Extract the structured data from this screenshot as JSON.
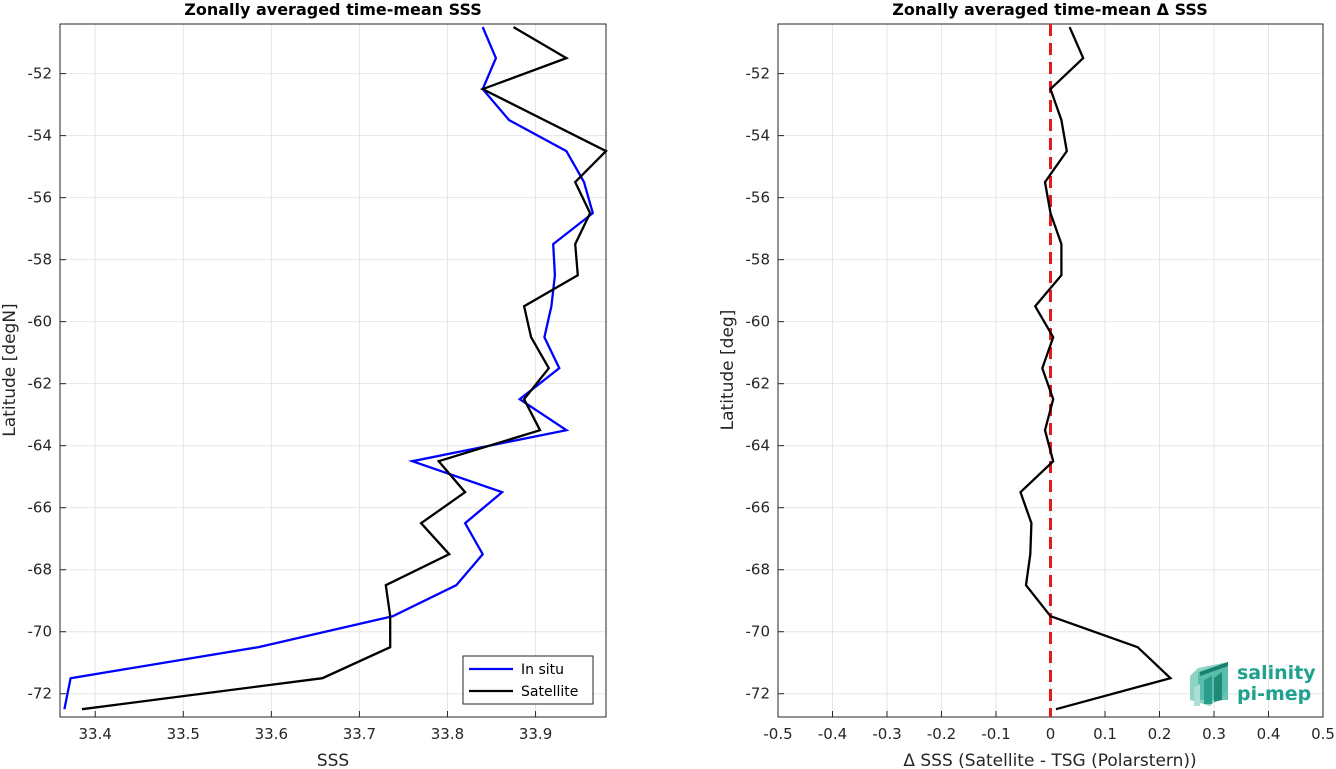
{
  "chart_data": [
    {
      "type": "line",
      "title": "Zonally averaged time-mean SSS",
      "xlabel": "SSS",
      "ylabel": "Latitude [degN]",
      "xlim": [
        33.36,
        33.98
      ],
      "ylim": [
        -72.75,
        -50.4
      ],
      "xticks": [
        33.4,
        33.5,
        33.6,
        33.7,
        33.8,
        33.9
      ],
      "yticks": [
        -72,
        -70,
        -68,
        -66,
        -64,
        -62,
        -60,
        -58,
        -56,
        -54,
        -52
      ],
      "grid": true,
      "legend_position": "bottom-right",
      "series": [
        {
          "name": "In situ",
          "color": "#0000ff",
          "points": [
            [
              33.84,
              -50.5
            ],
            [
              33.855,
              -51.5
            ],
            [
              33.84,
              -52.5
            ],
            [
              33.87,
              -53.5
            ],
            [
              33.935,
              -54.5
            ],
            [
              33.955,
              -55.5
            ],
            [
              33.965,
              -56.5
            ],
            [
              33.92,
              -57.5
            ],
            [
              33.922,
              -58.5
            ],
            [
              33.918,
              -59.5
            ],
            [
              33.91,
              -60.5
            ],
            [
              33.927,
              -61.5
            ],
            [
              33.882,
              -62.5
            ],
            [
              33.935,
              -63.5
            ],
            [
              33.76,
              -64.5
            ],
            [
              33.862,
              -65.5
            ],
            [
              33.82,
              -66.5
            ],
            [
              33.84,
              -67.5
            ],
            [
              33.81,
              -68.5
            ],
            [
              33.738,
              -69.5
            ],
            [
              33.585,
              -70.5
            ],
            [
              33.372,
              -71.5
            ],
            [
              33.365,
              -72.5
            ]
          ]
        },
        {
          "name": "Satellite",
          "color": "#000000",
          "points": [
            [
              33.875,
              -50.5
            ],
            [
              33.935,
              -51.5
            ],
            [
              33.84,
              -52.5
            ],
            [
              33.91,
              -53.5
            ],
            [
              33.98,
              -54.5
            ],
            [
              33.945,
              -55.5
            ],
            [
              33.962,
              -56.5
            ],
            [
              33.945,
              -57.5
            ],
            [
              33.948,
              -58.5
            ],
            [
              33.887,
              -59.5
            ],
            [
              33.895,
              -60.5
            ],
            [
              33.915,
              -61.5
            ],
            [
              33.887,
              -62.5
            ],
            [
              33.905,
              -63.5
            ],
            [
              33.79,
              -64.5
            ],
            [
              33.82,
              -65.5
            ],
            [
              33.77,
              -66.5
            ],
            [
              33.802,
              -67.5
            ],
            [
              33.73,
              -68.5
            ],
            [
              33.735,
              -69.5
            ],
            [
              33.735,
              -70.5
            ],
            [
              33.658,
              -71.5
            ],
            [
              33.385,
              -72.5
            ]
          ]
        }
      ]
    },
    {
      "type": "line",
      "title": "Zonally averaged time-mean Δ SSS",
      "xlabel": "Δ SSS (Satellite - TSG (Polarstern))",
      "ylabel": "Latitude [deg]",
      "xlim": [
        -0.5,
        0.5
      ],
      "ylim": [
        -72.75,
        -50.4
      ],
      "xticks": [
        -0.5,
        -0.4,
        -0.3,
        -0.2,
        -0.1,
        0,
        0.1,
        0.2,
        0.3,
        0.4,
        0.5
      ],
      "yticks": [
        -72,
        -70,
        -68,
        -66,
        -64,
        -62,
        -60,
        -58,
        -56,
        -54,
        -52
      ],
      "grid": true,
      "series": [
        {
          "color": "#000000",
          "points": [
            [
              0.035,
              -50.5
            ],
            [
              0.06,
              -51.5
            ],
            [
              0.0,
              -52.5
            ],
            [
              0.02,
              -53.5
            ],
            [
              0.03,
              -54.5
            ],
            [
              -0.01,
              -55.5
            ],
            [
              0.0,
              -56.5
            ],
            [
              0.02,
              -57.5
            ],
            [
              0.02,
              -58.5
            ],
            [
              -0.028,
              -59.5
            ],
            [
              0.005,
              -60.5
            ],
            [
              -0.015,
              -61.5
            ],
            [
              0.005,
              -62.5
            ],
            [
              -0.01,
              -63.5
            ],
            [
              0.005,
              -64.5
            ],
            [
              -0.055,
              -65.5
            ],
            [
              -0.035,
              -66.5
            ],
            [
              -0.037,
              -67.5
            ],
            [
              -0.045,
              -68.5
            ],
            [
              0.0,
              -69.5
            ],
            [
              0.16,
              -70.5
            ],
            [
              0.22,
              -71.5
            ],
            [
              0.01,
              -72.5
            ]
          ]
        }
      ],
      "reference_line": {
        "x": 0,
        "color": "#e41a1c",
        "style": "dashed"
      }
    }
  ],
  "logo": {
    "line1": "salinity",
    "line2": "pi-mep",
    "color": "#1fa18f"
  }
}
